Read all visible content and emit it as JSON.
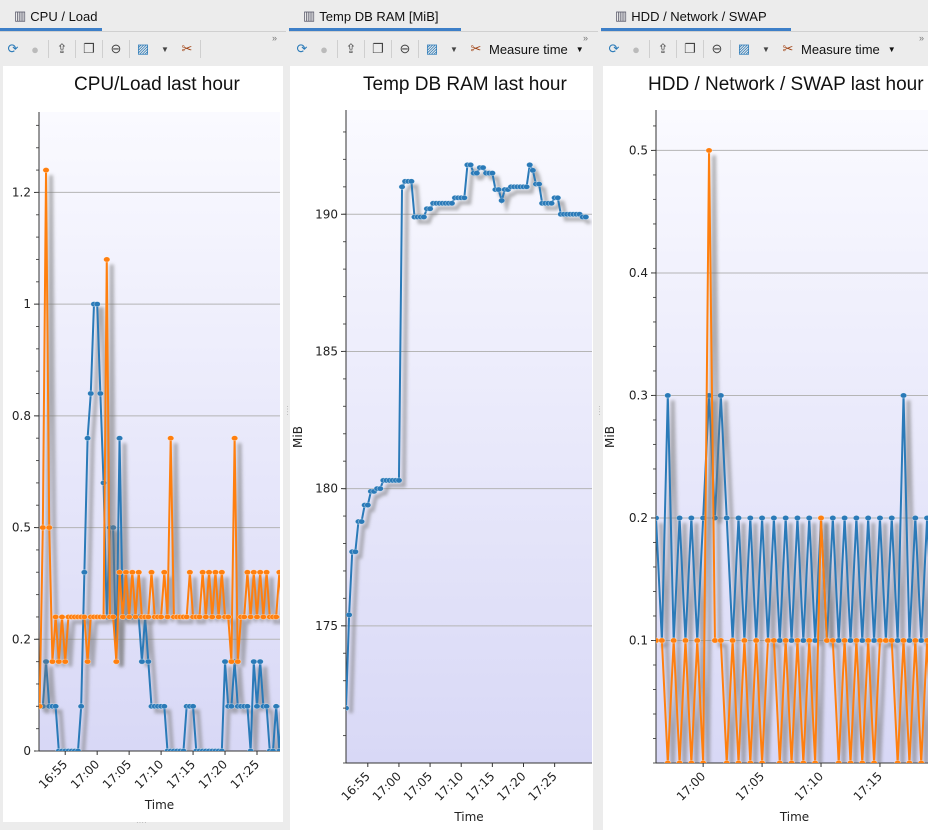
{
  "panels": [
    {
      "tab": "CPU / Load",
      "title": "CPU/Load last hour",
      "measure_label": ""
    },
    {
      "tab": "Temp DB RAM [MiB]",
      "title": "Temp DB RAM last hour",
      "measure_label": "Measure time"
    },
    {
      "tab": "HDD / Network / SWAP",
      "title": "HDD / Network / SWAP last hour",
      "measure_label": "Measure time"
    }
  ],
  "toolbar_icons": [
    "refresh-icon",
    "stop-icon",
    "export-icon",
    "copy-icon",
    "zoom-out-icon",
    "chart-type-icon",
    "dropdown-arrow-icon",
    "settings-tools-icon"
  ],
  "overflow_label": "»",
  "colors": {
    "series_blue": "#2a7ab8",
    "series_orange": "#ff7f0e",
    "tab_active": "#3d7fc8",
    "plot_top": "#fafaff",
    "plot_bottom": "#d8d8f6"
  },
  "chart_data": [
    {
      "type": "line",
      "title": "CPU/Load last hour",
      "xlabel": "Time",
      "ylabel": "",
      "xlim": [
        "16:50:54",
        "17:28:36"
      ],
      "ylim": [
        0,
        1.43
      ],
      "yticks": [
        {
          "v": 0,
          "label": "0"
        },
        {
          "v": 0.25,
          "label": "0.2"
        },
        {
          "v": 0.5,
          "label": "0.5"
        },
        {
          "v": 0.75,
          "label": "0.8"
        },
        {
          "v": 1,
          "label": "1"
        },
        {
          "v": 1.25,
          "label": "1.2"
        }
      ],
      "xticks": [
        "16:55",
        "17:00",
        "17:05",
        "17:10",
        "17:15",
        "17:20",
        "17:25"
      ],
      "grid": true,
      "series": [
        {
          "color": "#2a7ab8",
          "start": "16:51:00",
          "interval_seconds": 30,
          "values": [
            0.1,
            0.1,
            0.2,
            0.1,
            0.1,
            0.1,
            0,
            0,
            0,
            0,
            0,
            0,
            0,
            0.1,
            0.4,
            0.7,
            0.8,
            1.0,
            1.0,
            0.8,
            0.6,
            0.3,
            0.5,
            0.5,
            0.2,
            0.7,
            0.3,
            0.3,
            0.3,
            0.3,
            0.3,
            0.3,
            0.2,
            0.3,
            0.2,
            0.1,
            0.1,
            0.1,
            0.1,
            0.1,
            0,
            0,
            0,
            0,
            0,
            0,
            0.1,
            0.1,
            0.1,
            0,
            0,
            0,
            0,
            0,
            0,
            0,
            0,
            0,
            0.2,
            0.1,
            0.1,
            0.2,
            0.1,
            0.1,
            0.1,
            0.1,
            0,
            0.2,
            0.1,
            0.2,
            0.1,
            0.1,
            0,
            0,
            0.1,
            0,
            0.1
          ]
        },
        {
          "color": "#ff7f0e",
          "start": "16:51:00",
          "interval_seconds": 30,
          "values": [
            0.1,
            0.5,
            1.3,
            0.5,
            0.2,
            0.3,
            0.2,
            0.3,
            0.2,
            0.3,
            0.3,
            0.3,
            0.3,
            0.3,
            0.3,
            0.2,
            0.3,
            0.3,
            0.3,
            0.3,
            0.3,
            1.1,
            0.3,
            0.3,
            0.2,
            0.4,
            0.3,
            0.4,
            0.3,
            0.4,
            0.3,
            0.4,
            0.3,
            0.3,
            0.3,
            0.4,
            0.3,
            0.3,
            0.3,
            0.4,
            0.3,
            0.7,
            0.3,
            0.3,
            0.3,
            0.3,
            0.3,
            0.4,
            0.3,
            0.3,
            0.3,
            0.4,
            0.3,
            0.4,
            0.3,
            0.4,
            0.3,
            0.4,
            0.3,
            0.3,
            0.2,
            0.7,
            0.2,
            0.3,
            0.3,
            0.4,
            0.3,
            0.4,
            0.3,
            0.4,
            0.3,
            0.4,
            0.3,
            0.3,
            0.3,
            0.4,
            0.3
          ]
        }
      ]
    },
    {
      "type": "line",
      "title": "Temp DB RAM last hour",
      "xlabel": "Time",
      "ylabel": "MiB",
      "xlim": [
        "16:51:30",
        "17:31:00"
      ],
      "ylim": [
        170,
        193.8
      ],
      "yticks": [
        {
          "v": 175,
          "label": "175"
        },
        {
          "v": 180,
          "label": "180"
        },
        {
          "v": 185,
          "label": "185"
        },
        {
          "v": 190,
          "label": "190"
        }
      ],
      "xticks": [
        "16:55",
        "17:00",
        "17:05",
        "17:10",
        "17:15",
        "17:20",
        "17:25"
      ],
      "grid": true,
      "series": [
        {
          "color": "#2a7ab8",
          "start": "16:51:30",
          "interval_seconds": 30,
          "values": [
            172,
            175.4,
            177.7,
            177.7,
            178.8,
            178.8,
            179.4,
            179.4,
            179.9,
            179.9,
            180.0,
            180.0,
            180.3,
            180.3,
            180.3,
            180.3,
            180.3,
            180.3,
            191.0,
            191.2,
            191.2,
            191.2,
            189.9,
            189.9,
            189.9,
            189.9,
            190.2,
            190.2,
            190.4,
            190.4,
            190.4,
            190.4,
            190.4,
            190.4,
            190.4,
            190.6,
            190.6,
            190.6,
            190.6,
            191.8,
            191.8,
            191.5,
            191.5,
            191.7,
            191.7,
            191.5,
            191.5,
            191.5,
            190.9,
            190.9,
            190.5,
            190.9,
            190.9,
            191.0,
            191.0,
            191.0,
            191.0,
            191.0,
            191.0,
            191.8,
            191.6,
            191.1,
            191.1,
            190.4,
            190.4,
            190.4,
            190.4,
            190.6,
            190.6,
            190.0,
            190.0,
            190.0,
            190.0,
            190.0,
            190.0,
            190.0,
            189.9,
            189.9
          ]
        }
      ]
    },
    {
      "type": "line",
      "title": "HDD / Network / SWAP last hour",
      "xlabel": "Time",
      "ylabel": "MiB",
      "xlim": [
        "16:56:00",
        "17:19:30"
      ],
      "ylim": [
        0,
        0.533
      ],
      "yticks": [
        {
          "v": 0.1,
          "label": "0.1"
        },
        {
          "v": 0.2,
          "label": "0.2"
        },
        {
          "v": 0.3,
          "label": "0.3"
        },
        {
          "v": 0.4,
          "label": "0.4"
        },
        {
          "v": 0.5,
          "label": "0.5"
        }
      ],
      "xticks": [
        "17:00",
        "17:05",
        "17:10",
        "17:15"
      ],
      "grid": true,
      "series": [
        {
          "color": "#2a7ab8",
          "start": "16:56:00",
          "interval_seconds": 30,
          "values": [
            0.2,
            0.1,
            0.3,
            0.1,
            0.2,
            0.1,
            0.2,
            0.1,
            0.2,
            0.3,
            0.2,
            0.3,
            0.2,
            0.1,
            0.2,
            0.1,
            0.2,
            0.1,
            0.2,
            0.1,
            0.2,
            0.1,
            0.2,
            0.1,
            0.2,
            0.1,
            0.2,
            0.1,
            0.2,
            0.1,
            0.2,
            0.1,
            0.2,
            0.1,
            0.2,
            0.1,
            0.2,
            0.1,
            0.2,
            0.1,
            0.2,
            0.1,
            0.3,
            0.1,
            0.2,
            0.1,
            0.2,
            0.1,
            0.2
          ]
        },
        {
          "color": "#ff7f0e",
          "start": "16:56:00",
          "interval_seconds": 30,
          "values": [
            0.1,
            0.1,
            0,
            0.1,
            0,
            0.1,
            0,
            0.1,
            0,
            0.5,
            0.1,
            0.1,
            0,
            0.1,
            0,
            0.1,
            0,
            0.1,
            0,
            0.1,
            0.1,
            0,
            0.1,
            0,
            0.1,
            0,
            0.1,
            0,
            0.2,
            0.1,
            0.1,
            0,
            0.1,
            0,
            0.1,
            0,
            0.1,
            0,
            0.1,
            0.1,
            0.1,
            0,
            0.1,
            0,
            0.1,
            0,
            0.1,
            0
          ]
        }
      ]
    }
  ]
}
